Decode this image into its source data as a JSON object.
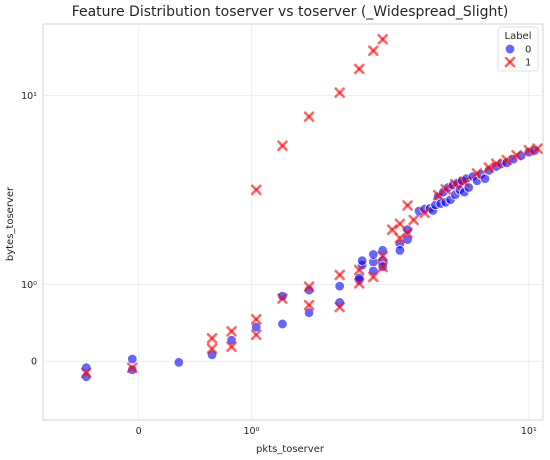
{
  "chart_data": {
    "type": "scatter",
    "title": "Feature Distribution toserver vs toserver (_Widespread_Slight)",
    "xlabel": "pkts_toserver",
    "ylabel": "bytes_toserver",
    "x_scale": "symlog",
    "y_scale": "symlog",
    "xlim": [
      -0.8,
      11.0
    ],
    "ylim": [
      -0.7,
      20.0
    ],
    "x_ticks": [
      {
        "value": 0,
        "label": "0"
      },
      {
        "value": 1,
        "label": "10⁰"
      },
      {
        "value": 10,
        "label": "10¹"
      }
    ],
    "y_ticks": [
      {
        "value": 0,
        "label": "0"
      },
      {
        "value": 1,
        "label": "10⁰"
      },
      {
        "value": 10,
        "label": "10¹"
      }
    ],
    "grid": true,
    "legend": {
      "title": "Label",
      "position": "top-right",
      "entries": [
        {
          "label": "0",
          "marker": "circle",
          "color": "#0000ff"
        },
        {
          "label": "1",
          "marker": "x",
          "color": "#ff0000"
        }
      ]
    },
    "series": [
      {
        "name": "0",
        "marker": "circle",
        "color": "#0000ff",
        "points": [
          [
            -0.38,
            -0.06
          ],
          [
            -0.38,
            -0.15
          ],
          [
            -0.04,
            0.02
          ],
          [
            -0.04,
            -0.08
          ],
          [
            0.28,
            -0.01
          ],
          [
            0.57,
            0.06
          ],
          [
            0.77,
            0.21
          ],
          [
            1.06,
            0.36
          ],
          [
            1.42,
            0.4
          ],
          [
            1.42,
            0.8
          ],
          [
            1.85,
            0.9
          ],
          [
            1.85,
            0.55
          ],
          [
            2.44,
            0.97
          ],
          [
            2.44,
            0.7
          ],
          [
            2.88,
            1.08
          ],
          [
            2.88,
            1.12
          ],
          [
            2.95,
            1.38
          ],
          [
            2.95,
            1.48
          ],
          [
            3.23,
            1.26
          ],
          [
            3.23,
            1.45
          ],
          [
            3.23,
            1.62
          ],
          [
            3.48,
            1.48
          ],
          [
            3.48,
            1.72
          ],
          [
            3.48,
            1.35
          ],
          [
            3.98,
            1.88
          ],
          [
            3.98,
            1.72
          ],
          [
            4.22,
            2.0
          ],
          [
            4.22,
            2.28
          ],
          [
            4.6,
            2.88
          ],
          [
            4.8,
            2.95
          ],
          [
            5.0,
            2.98
          ],
          [
            5.1,
            2.9
          ],
          [
            5.2,
            3.1
          ],
          [
            5.3,
            3.42
          ],
          [
            5.4,
            3.15
          ],
          [
            5.5,
            3.6
          ],
          [
            5.6,
            3.2
          ],
          [
            5.7,
            3.8
          ],
          [
            5.8,
            3.3
          ],
          [
            5.9,
            3.9
          ],
          [
            6.0,
            3.5
          ],
          [
            6.1,
            4.0
          ],
          [
            6.2,
            3.7
          ],
          [
            6.3,
            4.1
          ],
          [
            6.4,
            3.6
          ],
          [
            6.5,
            4.2
          ],
          [
            6.6,
            3.8
          ],
          [
            6.8,
            4.3
          ],
          [
            7.0,
            4.1
          ],
          [
            7.2,
            4.4
          ],
          [
            7.4,
            4.2
          ],
          [
            7.6,
            4.6
          ],
          [
            8.0,
            4.8
          ],
          [
            8.3,
            4.95
          ],
          [
            8.6,
            5.0
          ],
          [
            9.0,
            5.2
          ],
          [
            9.5,
            5.4
          ],
          [
            10.0,
            5.6
          ],
          [
            10.4,
            5.7
          ]
        ]
      },
      {
        "name": "1",
        "marker": "x",
        "color": "#ff0000",
        "points": [
          [
            -0.38,
            -0.11
          ],
          [
            -0.04,
            -0.06
          ],
          [
            0.57,
            0.12
          ],
          [
            0.57,
            0.23
          ],
          [
            0.77,
            0.31
          ],
          [
            0.77,
            0.14
          ],
          [
            1.06,
            0.46
          ],
          [
            1.06,
            0.27
          ],
          [
            1.06,
            3.7
          ],
          [
            1.42,
            6.0
          ],
          [
            1.85,
            8.1
          ],
          [
            2.44,
            10.3
          ],
          [
            2.88,
            13.0
          ],
          [
            3.23,
            15.5
          ],
          [
            3.48,
            17.3
          ],
          [
            1.42,
            0.76
          ],
          [
            1.85,
            0.96
          ],
          [
            1.85,
            0.66
          ],
          [
            2.44,
            1.18
          ],
          [
            2.44,
            0.63
          ],
          [
            2.88,
            1.02
          ],
          [
            2.88,
            1.28
          ],
          [
            3.23,
            1.14
          ],
          [
            3.48,
            1.34
          ],
          [
            3.48,
            1.58
          ],
          [
            3.75,
            2.28
          ],
          [
            3.98,
            2.04
          ],
          [
            3.98,
            2.46
          ],
          [
            4.22,
            2.18
          ],
          [
            4.22,
            3.08
          ],
          [
            4.42,
            2.58
          ],
          [
            4.8,
            2.82
          ],
          [
            5.3,
            3.48
          ],
          [
            5.6,
            3.72
          ],
          [
            6.0,
            3.95
          ],
          [
            6.4,
            4.05
          ],
          [
            7.0,
            4.45
          ],
          [
            7.6,
            4.75
          ],
          [
            8.0,
            4.95
          ],
          [
            8.6,
            5.15
          ],
          [
            9.2,
            5.42
          ],
          [
            10.0,
            5.72
          ],
          [
            10.6,
            5.82
          ]
        ]
      }
    ]
  }
}
